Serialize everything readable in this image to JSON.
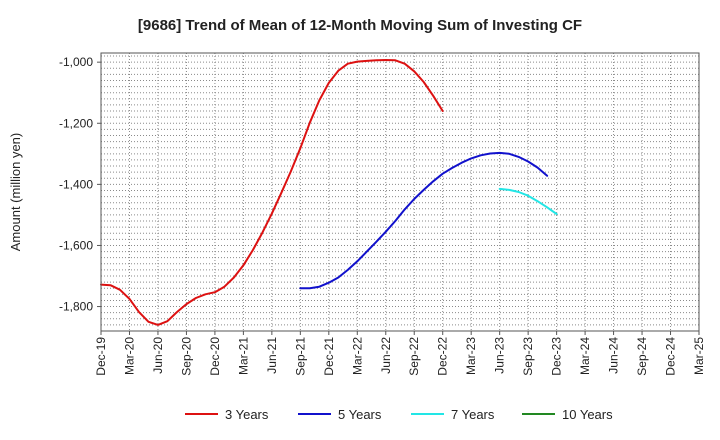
{
  "chart_data": {
    "type": "line",
    "title": "[9686]  Trend of Mean of 12-Month Moving Sum of Investing CF",
    "xlabel": "",
    "ylabel": "Amount (million yen)",
    "categories": [
      "Dec-19",
      "Mar-20",
      "Jun-20",
      "Sep-20",
      "Dec-20",
      "Mar-21",
      "Jun-21",
      "Sep-21",
      "Dec-21",
      "Mar-22",
      "Jun-22",
      "Sep-22",
      "Dec-22",
      "Mar-23",
      "Jun-23",
      "Sep-23",
      "Dec-23",
      "Mar-24",
      "Jun-24",
      "Sep-24",
      "Dec-24",
      "Mar-25"
    ],
    "ylim": [
      -1880,
      -970
    ],
    "yticks": [
      -1000,
      -1200,
      -1400,
      -1600,
      -1800
    ],
    "ytick_labels": [
      "-1,000",
      "-1,200",
      "-1,400",
      "-1,600",
      "-1,800"
    ],
    "grid": true,
    "legend_position": "bottom",
    "series": [
      {
        "name": "3 Years",
        "color": "#dd1111",
        "points": [
          [
            0,
            -1728
          ],
          [
            1,
            -1730
          ],
          [
            2,
            -1745
          ],
          [
            3,
            -1775
          ],
          [
            4,
            -1818
          ],
          [
            5,
            -1850
          ],
          [
            6,
            -1860
          ],
          [
            7,
            -1848
          ],
          [
            8,
            -1818
          ],
          [
            9,
            -1792
          ],
          [
            10,
            -1772
          ],
          [
            11,
            -1760
          ],
          [
            12,
            -1753
          ],
          [
            13,
            -1735
          ],
          [
            14,
            -1705
          ],
          [
            15,
            -1665
          ],
          [
            16,
            -1615
          ],
          [
            17,
            -1558
          ],
          [
            18,
            -1495
          ],
          [
            19,
            -1428
          ],
          [
            20,
            -1358
          ],
          [
            21,
            -1282
          ],
          [
            22,
            -1198
          ],
          [
            23,
            -1125
          ],
          [
            24,
            -1068
          ],
          [
            25,
            -1028
          ],
          [
            26,
            -1005
          ],
          [
            27,
            -998
          ],
          [
            28,
            -996
          ],
          [
            29,
            -994
          ],
          [
            30,
            -993
          ],
          [
            31,
            -994
          ],
          [
            32,
            -1005
          ],
          [
            33,
            -1030
          ],
          [
            34,
            -1065
          ],
          [
            35,
            -1110
          ],
          [
            36,
            -1160
          ]
        ]
      },
      {
        "name": "5 Years",
        "color": "#1111cc",
        "points": [
          [
            21,
            -1740
          ],
          [
            22,
            -1740
          ],
          [
            23,
            -1735
          ],
          [
            24,
            -1722
          ],
          [
            25,
            -1705
          ],
          [
            26,
            -1680
          ],
          [
            27,
            -1652
          ],
          [
            28,
            -1620
          ],
          [
            29,
            -1588
          ],
          [
            30,
            -1555
          ],
          [
            31,
            -1520
          ],
          [
            32,
            -1482
          ],
          [
            33,
            -1448
          ],
          [
            34,
            -1418
          ],
          [
            35,
            -1390
          ],
          [
            36,
            -1365
          ],
          [
            37,
            -1346
          ],
          [
            38,
            -1329
          ],
          [
            39,
            -1315
          ],
          [
            40,
            -1305
          ],
          [
            41,
            -1299
          ],
          [
            42,
            -1297
          ],
          [
            43,
            -1300
          ],
          [
            44,
            -1310
          ],
          [
            45,
            -1325
          ],
          [
            46,
            -1345
          ],
          [
            47,
            -1372
          ]
        ]
      },
      {
        "name": "7 Years",
        "color": "#22e6e6",
        "points": [
          [
            42,
            -1415
          ],
          [
            43,
            -1418
          ],
          [
            44,
            -1425
          ],
          [
            45,
            -1437
          ],
          [
            46,
            -1455
          ],
          [
            47,
            -1475
          ],
          [
            48,
            -1497
          ]
        ]
      },
      {
        "name": "10 Years",
        "color": "#228822",
        "points": []
      }
    ]
  }
}
